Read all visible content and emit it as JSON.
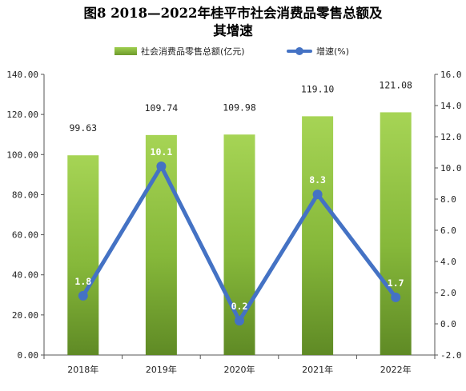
{
  "title": {
    "line1": "图8  2018—2022年桂平市社会消费品零售总额及",
    "line2": "其增速"
  },
  "chart_data": {
    "type": "bar",
    "title": "图8  2018—2022年桂平市社会消费品零售总额及其增速",
    "categories": [
      "2018年",
      "2019年",
      "2020年",
      "2021年",
      "2022年"
    ],
    "series": [
      {
        "name": "社会消费品零售总额(亿元)",
        "type": "bar",
        "axis": "left",
        "values": [
          99.63,
          109.74,
          109.98,
          119.1,
          121.08
        ],
        "labels": [
          "99.63",
          "109.74",
          "109.98",
          "119.10",
          "121.08"
        ],
        "color": "#8dc03f"
      },
      {
        "name": "增速(%)",
        "type": "line",
        "axis": "right",
        "values": [
          1.8,
          10.1,
          0.2,
          8.3,
          1.7
        ],
        "labels": [
          "1.8",
          "10.1",
          "0.2",
          "8.3",
          "1.7"
        ],
        "color": "#4472c4"
      }
    ],
    "left_axis": {
      "ylim": [
        0,
        140
      ],
      "ticks": [
        0,
        20,
        40,
        60,
        80,
        100,
        120,
        140
      ],
      "tick_labels": [
        "0.00",
        "20.00",
        "40.00",
        "60.00",
        "80.00",
        "100.00",
        "120.00",
        "140.00"
      ]
    },
    "right_axis": {
      "ylim": [
        -2,
        16
      ],
      "ticks": [
        -2,
        0,
        2,
        4,
        6,
        8,
        10,
        12,
        14,
        16
      ],
      "tick_labels": [
        "-2.0",
        "0.0",
        "2.0",
        "4.0",
        "6.0",
        "8.0",
        "10.0",
        "12.0",
        "14.0",
        "16.0"
      ]
    },
    "legend_position": "top",
    "grid": false
  }
}
